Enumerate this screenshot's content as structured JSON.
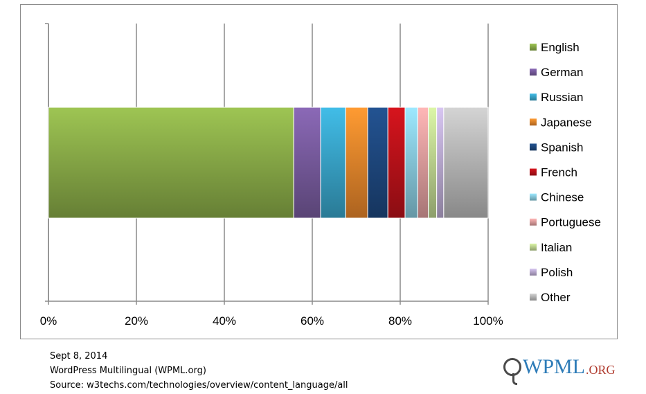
{
  "chart_data": {
    "type": "bar",
    "orientation": "horizontal-stacked-100",
    "categories": [
      ""
    ],
    "series": [
      {
        "name": "English",
        "values": [
          55.8
        ],
        "color": "#8db04a"
      },
      {
        "name": "German",
        "values": [
          6.1
        ],
        "color": "#7c5ea3"
      },
      {
        "name": "Russian",
        "values": [
          5.7
        ],
        "color": "#3aa9cf"
      },
      {
        "name": "Japanese",
        "values": [
          5.0
        ],
        "color": "#ef8a2d"
      },
      {
        "name": "Spanish",
        "values": [
          4.6
        ],
        "color": "#1f4a82"
      },
      {
        "name": "French",
        "values": [
          3.9
        ],
        "color": "#c0121a"
      },
      {
        "name": "Chinese",
        "values": [
          2.9
        ],
        "color": "#8cd0e4"
      },
      {
        "name": "Portuguese",
        "values": [
          2.4
        ],
        "color": "#e6a3a3"
      },
      {
        "name": "Italian",
        "values": [
          1.9
        ],
        "color": "#c4dc95"
      },
      {
        "name": "Polish",
        "values": [
          1.6
        ],
        "color": "#c1b1d8"
      },
      {
        "name": "Other",
        "values": [
          10.1
        ],
        "color": "#bdbdbd"
      }
    ],
    "xlim": [
      0,
      100
    ],
    "x_ticks": [
      "0%",
      "20%",
      "40%",
      "60%",
      "80%",
      "100%"
    ],
    "grid": true,
    "legend": "right"
  },
  "footer": {
    "date": "Sept 8, 2014",
    "org": "WordPress Multilingual (WPML.org)",
    "source": "Source: w3techs.com/technologies/overview/content_language/all"
  },
  "logo": {
    "name": "WPML",
    "tld": ".ORG"
  }
}
